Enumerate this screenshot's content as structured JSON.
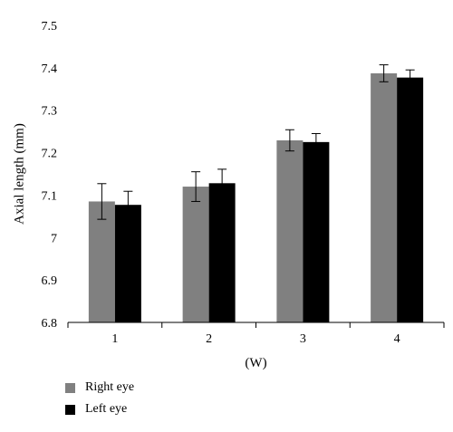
{
  "chart_data": {
    "type": "bar",
    "categories": [
      "1",
      "2",
      "3",
      "4"
    ],
    "series": [
      {
        "name": "Right eye",
        "values": [
          7.085,
          7.12,
          7.229,
          7.387
        ],
        "errors": [
          0.042,
          0.035,
          0.025,
          0.02
        ],
        "color": "#808080"
      },
      {
        "name": "Left eye",
        "values": [
          7.077,
          7.128,
          7.225,
          7.377
        ],
        "errors": [
          0.032,
          0.033,
          0.02,
          0.018
        ],
        "color": "#000000"
      }
    ],
    "xlabel": "(W)",
    "ylabel": "Axial length (mm)",
    "ylim": [
      6.8,
      7.5
    ],
    "yticks": [
      "6.8",
      "6.9",
      "7",
      "7.1",
      "7.2",
      "7.3",
      "7.4",
      "7.5"
    ],
    "grid": false,
    "legend_position": "bottom-left"
  }
}
